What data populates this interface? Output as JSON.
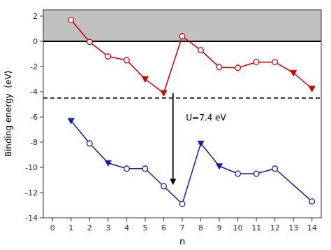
{
  "chart_data": {
    "type": "line",
    "xlabel": "n",
    "ylabel": "Binding energy  (eV)",
    "xlim": [
      -0.5,
      14.5
    ],
    "ylim": [
      -14,
      2.5
    ],
    "xticks": [
      0,
      1,
      2,
      3,
      4,
      5,
      6,
      7,
      8,
      9,
      10,
      11,
      12,
      13,
      14
    ],
    "yticks": [
      -14,
      -12,
      -10,
      -8,
      -6,
      -4,
      -2,
      0,
      2
    ],
    "grid": false,
    "bands": [
      {
        "from": 0,
        "to": 2.5,
        "color": "#c0c0c0"
      }
    ],
    "hlines": [
      {
        "y": 0,
        "line_style": "solid"
      },
      {
        "y": -4.5,
        "line_style": "dashed"
      }
    ],
    "arrows": [
      {
        "x": 6.5,
        "y_from": -4.1,
        "y_to": -11.4
      }
    ],
    "annotations": [
      {
        "text": "U=7.4 eV",
        "x": 7.2,
        "y": -6.3
      }
    ],
    "series": [
      {
        "type": "line",
        "line_style": "solid",
        "color": "#cc0000",
        "x": [
          1,
          2,
          3,
          4,
          5,
          6,
          7,
          8,
          9,
          10,
          11,
          12,
          13,
          14
        ],
        "values": [
          1.7,
          -0.05,
          -1.2,
          -1.5,
          -3.0,
          -4.1,
          0.4,
          -0.7,
          -2.05,
          -2.1,
          -1.65,
          -1.65,
          -2.5,
          -3.75
        ]
      },
      {
        "type": "scatter",
        "marker": "circle",
        "color": "#cc0000",
        "x": [
          1,
          2,
          3,
          4,
          7,
          8,
          9,
          10,
          11,
          12
        ],
        "values": [
          1.7,
          -0.05,
          -1.2,
          -1.5,
          0.4,
          -0.7,
          -2.05,
          -2.1,
          -1.65,
          -1.65
        ]
      },
      {
        "type": "scatter",
        "marker": "triangle-down",
        "color": "#cc0000",
        "x": [
          5,
          6,
          13,
          14
        ],
        "values": [
          -3.0,
          -4.1,
          -2.5,
          -3.75
        ]
      },
      {
        "type": "line",
        "line_style": "solid",
        "color": "#1a1aaa",
        "x": [
          1,
          2,
          3,
          4,
          5,
          6,
          7,
          8,
          9,
          10,
          11,
          12,
          14
        ],
        "values": [
          -6.3,
          -8.1,
          -9.65,
          -10.1,
          -10.1,
          -11.5,
          -12.9,
          -8.1,
          -9.9,
          -10.5,
          -10.5,
          -10.1,
          -12.7
        ]
      },
      {
        "type": "scatter",
        "marker": "circle",
        "color": "#1a1aaa",
        "x": [
          2,
          4,
          5,
          6,
          7,
          10,
          11,
          12,
          14
        ],
        "values": [
          -8.1,
          -10.1,
          -10.1,
          -11.5,
          -12.9,
          -10.5,
          -10.5,
          -10.1,
          -12.7
        ]
      },
      {
        "type": "scatter",
        "marker": "triangle-down",
        "color": "#1a1aaa",
        "x": [
          1,
          3,
          8,
          9
        ],
        "values": [
          -6.3,
          -9.65,
          -8.1,
          -9.9
        ]
      }
    ]
  }
}
